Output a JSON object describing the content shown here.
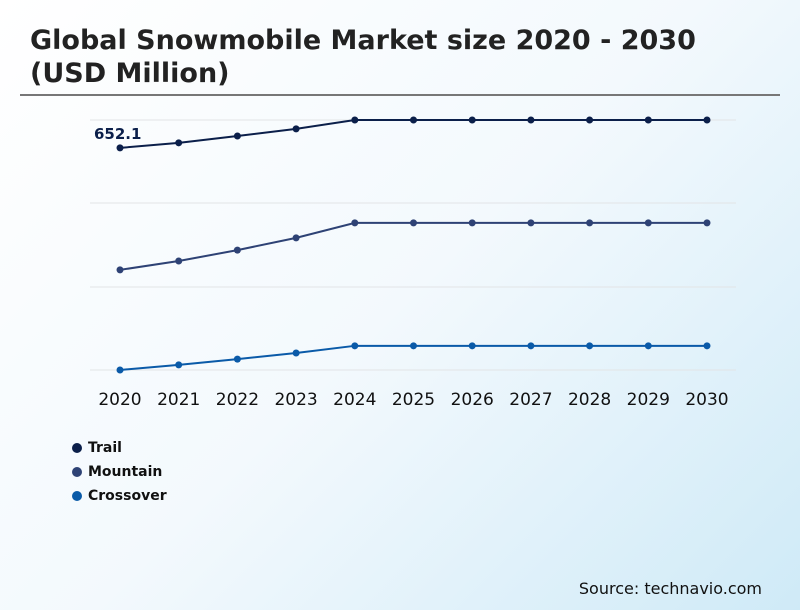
{
  "title": "Global Snowmobile Market size 2020 - 2030 (USD Million)",
  "source": "Source: technavio.com",
  "chart_data": {
    "type": "line",
    "title": "Global Snowmobile Market size 2020 - 2030 (USD Million)",
    "categories": [
      "2020",
      "2021",
      "2022",
      "2023",
      "2024",
      "2025",
      "2026",
      "2027",
      "2028",
      "2029",
      "2030"
    ],
    "ylim": [
      0,
      734
    ],
    "grid": true,
    "legend": "bottom-left",
    "annotation": "652.1",
    "series": [
      {
        "name": "Trail",
        "color": "#0b1f4a",
        "values": [
          652.1,
          667,
          687,
          708,
          734,
          734,
          734,
          734,
          734,
          734,
          734
        ]
      },
      {
        "name": "Mountain",
        "color": "#2e4275",
        "values": [
          294,
          320,
          352,
          388,
          432,
          432,
          432,
          432,
          432,
          432,
          432
        ]
      },
      {
        "name": "Crossover",
        "color": "#0a5aa8",
        "values": [
          0,
          15,
          32,
          50,
          71,
          71,
          71,
          71,
          71,
          71,
          71
        ]
      }
    ]
  }
}
